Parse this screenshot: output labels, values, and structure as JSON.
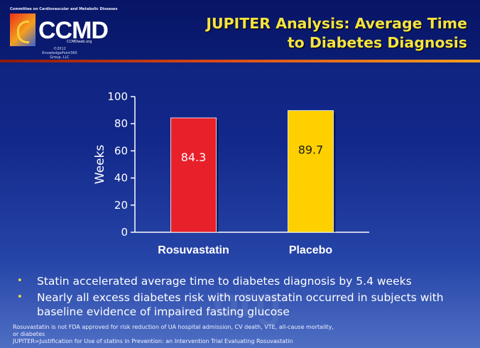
{
  "header": {
    "title_line1": "JUPITER Analysis: Average Time",
    "title_line2": "to Diabetes Diagnosis",
    "accent_color": "#f6e340"
  },
  "logo": {
    "org": "Committee on Cardiovascular and Metabolic Diseases",
    "mark": "CCMD",
    "url": "CCMDweb.org",
    "copyright": "©2012 KnowledgePoint360 Group, LLC"
  },
  "chart_data": {
    "type": "bar",
    "categories": [
      "Rosuvastatin",
      "Placebo"
    ],
    "values": [
      84.3,
      89.7
    ],
    "value_labels": [
      "84.3",
      "89.7"
    ],
    "colors": [
      "#e8202a",
      "#ffd000"
    ],
    "ylabel": "Weeks",
    "xlabel": "",
    "ylim": [
      0,
      100
    ],
    "yticks": [
      0,
      20,
      40,
      60,
      80,
      100
    ],
    "grid": false,
    "legend": "none"
  },
  "bullets": [
    "Statin accelerated average time to diabetes diagnosis by 5.4 weeks",
    "Nearly all excess diabetes risk with rosuvastatin occurred in subjects with baseline evidence of impaired fasting glucose"
  ],
  "footnote": {
    "line1": "Rosuvastatin is not FDA approved for risk reduction of UA hospital admission, CV death, VTE, all-cause mortality,",
    "line2": "or diabetes",
    "line3": "JUPITER=Justification for Use of statins in Prevention: an Intervention Trial Evaluating Rosuvastatin"
  },
  "watermark": "org"
}
